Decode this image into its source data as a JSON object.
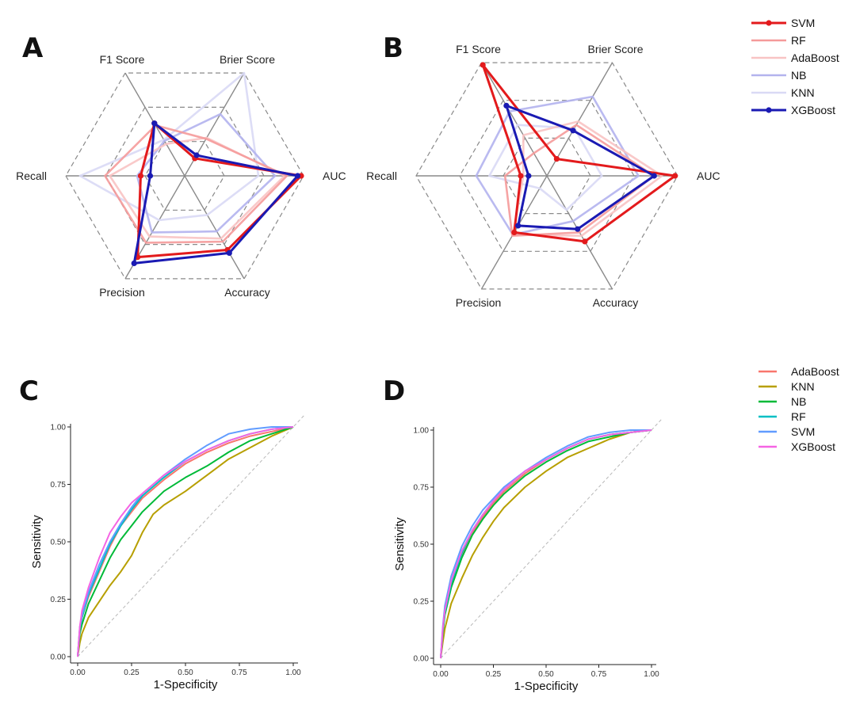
{
  "chart_data": [
    {
      "panel": "A",
      "type": "radar",
      "axes": [
        "AUC",
        "Brier Score",
        "F1 Score",
        "Recall",
        "Precision",
        "Accuracy"
      ],
      "range": [
        0,
        1
      ],
      "grid_levels": 3,
      "series": [
        {
          "name": "SVM",
          "values": [
            0.98,
            0.17,
            0.51,
            0.37,
            0.79,
            0.72
          ],
          "color": "#e31a1c",
          "markers": true
        },
        {
          "name": "RF",
          "values": [
            0.86,
            0.36,
            0.49,
            0.67,
            0.65,
            0.64
          ],
          "color": "#f59a9a",
          "markers": false
        },
        {
          "name": "AdaBoost",
          "values": [
            0.84,
            0.37,
            0.31,
            0.63,
            0.59,
            0.61
          ],
          "color": "#f8c3c3",
          "markers": false
        },
        {
          "name": "NB",
          "values": [
            0.76,
            0.6,
            0.34,
            0.4,
            0.55,
            0.54
          ],
          "color": "#b3b3ee",
          "markers": false
        },
        {
          "name": "KNN",
          "values": [
            0.62,
            1.0,
            0.35,
            0.88,
            0.43,
            0.38
          ],
          "color": "#d9d9f5",
          "markers": false
        },
        {
          "name": "XGBoost",
          "values": [
            0.95,
            0.2,
            0.51,
            0.29,
            0.85,
            0.75
          ],
          "color": "#1a1ab3",
          "markers": true
        }
      ]
    },
    {
      "panel": "B",
      "type": "radar",
      "axes": [
        "AUC",
        "Brier Score",
        "F1 Score",
        "Recall",
        "Precision",
        "Accuracy"
      ],
      "range": [
        0,
        1
      ],
      "grid_levels": 3,
      "series": [
        {
          "name": "SVM",
          "values": [
            0.98,
            0.15,
            0.98,
            0.2,
            0.5,
            0.58
          ],
          "color": "#e31a1c",
          "markers": true
        },
        {
          "name": "RF",
          "values": [
            0.82,
            0.45,
            0.2,
            0.32,
            0.53,
            0.5
          ],
          "color": "#f59a9a",
          "markers": false
        },
        {
          "name": "AdaBoost",
          "values": [
            0.88,
            0.48,
            0.36,
            0.18,
            0.52,
            0.53
          ],
          "color": "#f8c3c3",
          "markers": false
        },
        {
          "name": "NB",
          "values": [
            0.7,
            0.7,
            0.57,
            0.54,
            0.52,
            0.4
          ],
          "color": "#b3b3ee",
          "markers": false
        },
        {
          "name": "KNN",
          "values": [
            0.42,
            0.42,
            0.45,
            0.44,
            0.11,
            0.3
          ],
          "color": "#d9d9f5",
          "markers": false
        },
        {
          "name": "XGBoost",
          "values": [
            0.82,
            0.4,
            0.62,
            0.14,
            0.44,
            0.47
          ],
          "color": "#1a1ab3",
          "markers": true
        }
      ]
    },
    {
      "panel": "C",
      "type": "line",
      "xlabel": "1-Specificity",
      "ylabel": "Sensitivity",
      "xlim": [
        0,
        1
      ],
      "ylim": [
        0,
        1
      ],
      "ticks": [
        "0.00",
        "0.25",
        "0.50",
        "0.75",
        "1.00"
      ],
      "tick_values": [
        0,
        0.25,
        0.5,
        0.75,
        1
      ],
      "reference_line": true,
      "series": [
        {
          "name": "AdaBoost",
          "color": "#f8766d",
          "x": [
            0,
            0.01,
            0.02,
            0.05,
            0.1,
            0.15,
            0.2,
            0.25,
            0.3,
            0.4,
            0.5,
            0.6,
            0.7,
            0.8,
            0.9,
            1
          ],
          "y": [
            0,
            0.12,
            0.17,
            0.26,
            0.37,
            0.48,
            0.57,
            0.63,
            0.69,
            0.77,
            0.84,
            0.89,
            0.93,
            0.96,
            0.98,
            1
          ]
        },
        {
          "name": "KNN",
          "color": "#b79f00",
          "x": [
            0,
            0.01,
            0.02,
            0.05,
            0.1,
            0.15,
            0.2,
            0.25,
            0.3,
            0.35,
            0.4,
            0.5,
            0.6,
            0.7,
            0.8,
            0.9,
            1
          ],
          "y": [
            0,
            0.06,
            0.1,
            0.17,
            0.24,
            0.31,
            0.37,
            0.44,
            0.54,
            0.62,
            0.66,
            0.72,
            0.79,
            0.86,
            0.91,
            0.96,
            1
          ]
        },
        {
          "name": "NB",
          "color": "#00ba38",
          "x": [
            0,
            0.01,
            0.02,
            0.05,
            0.1,
            0.15,
            0.2,
            0.25,
            0.3,
            0.4,
            0.5,
            0.6,
            0.7,
            0.8,
            0.9,
            1
          ],
          "y": [
            0,
            0.1,
            0.14,
            0.23,
            0.33,
            0.43,
            0.51,
            0.57,
            0.63,
            0.72,
            0.78,
            0.83,
            0.89,
            0.94,
            0.97,
            1
          ]
        },
        {
          "name": "RF",
          "color": "#00bfc4",
          "x": [
            0,
            0.01,
            0.02,
            0.05,
            0.1,
            0.15,
            0.2,
            0.25,
            0.3,
            0.4,
            0.5,
            0.6,
            0.7,
            0.8,
            0.9,
            1
          ],
          "y": [
            0,
            0.12,
            0.17,
            0.27,
            0.38,
            0.49,
            0.57,
            0.64,
            0.7,
            0.78,
            0.85,
            0.9,
            0.94,
            0.97,
            0.99,
            1
          ]
        },
        {
          "name": "SVM",
          "color": "#619cff",
          "x": [
            0,
            0.01,
            0.02,
            0.05,
            0.1,
            0.15,
            0.2,
            0.25,
            0.3,
            0.4,
            0.5,
            0.6,
            0.7,
            0.8,
            0.9,
            1
          ],
          "y": [
            0,
            0.13,
            0.18,
            0.28,
            0.4,
            0.5,
            0.58,
            0.65,
            0.71,
            0.79,
            0.86,
            0.92,
            0.97,
            0.99,
            1,
            1
          ]
        },
        {
          "name": "XGBoost",
          "color": "#f564e3",
          "x": [
            0,
            0.01,
            0.02,
            0.05,
            0.1,
            0.15,
            0.2,
            0.25,
            0.3,
            0.4,
            0.5,
            0.6,
            0.7,
            0.8,
            0.9,
            1
          ],
          "y": [
            0,
            0.13,
            0.2,
            0.3,
            0.43,
            0.54,
            0.61,
            0.67,
            0.71,
            0.79,
            0.85,
            0.9,
            0.94,
            0.97,
            0.99,
            1
          ]
        }
      ]
    },
    {
      "panel": "D",
      "type": "line",
      "xlabel": "1-Specificity",
      "ylabel": "Sensitivity",
      "xlim": [
        0,
        1
      ],
      "ylim": [
        0,
        1
      ],
      "ticks": [
        "0.00",
        "0.25",
        "0.50",
        "0.75",
        "1.00"
      ],
      "tick_values": [
        0,
        0.25,
        0.5,
        0.75,
        1
      ],
      "reference_line": true,
      "series": [
        {
          "name": "AdaBoost",
          "color": "#f8766d",
          "x": [
            0,
            0.01,
            0.02,
            0.05,
            0.1,
            0.15,
            0.2,
            0.25,
            0.3,
            0.4,
            0.5,
            0.6,
            0.7,
            0.8,
            0.9,
            1
          ],
          "y": [
            0,
            0.12,
            0.2,
            0.32,
            0.45,
            0.55,
            0.62,
            0.68,
            0.73,
            0.81,
            0.87,
            0.92,
            0.96,
            0.98,
            0.99,
            1
          ]
        },
        {
          "name": "KNN",
          "color": "#b79f00",
          "x": [
            0,
            0.01,
            0.02,
            0.05,
            0.1,
            0.15,
            0.2,
            0.25,
            0.3,
            0.4,
            0.5,
            0.6,
            0.7,
            0.8,
            0.9,
            1
          ],
          "y": [
            0,
            0.07,
            0.13,
            0.24,
            0.35,
            0.45,
            0.53,
            0.6,
            0.66,
            0.75,
            0.82,
            0.88,
            0.92,
            0.96,
            0.99,
            1
          ]
        },
        {
          "name": "NB",
          "color": "#00ba38",
          "x": [
            0,
            0.01,
            0.02,
            0.05,
            0.1,
            0.15,
            0.2,
            0.25,
            0.3,
            0.4,
            0.5,
            0.6,
            0.7,
            0.8,
            0.9,
            1
          ],
          "y": [
            0,
            0.11,
            0.19,
            0.31,
            0.44,
            0.54,
            0.61,
            0.67,
            0.72,
            0.8,
            0.86,
            0.91,
            0.95,
            0.97,
            0.99,
            1
          ]
        },
        {
          "name": "RF",
          "color": "#00bfc4",
          "x": [
            0,
            0.01,
            0.02,
            0.05,
            0.1,
            0.15,
            0.2,
            0.25,
            0.3,
            0.4,
            0.5,
            0.6,
            0.7,
            0.8,
            0.9,
            1
          ],
          "y": [
            0,
            0.12,
            0.2,
            0.33,
            0.46,
            0.56,
            0.63,
            0.69,
            0.74,
            0.82,
            0.87,
            0.92,
            0.96,
            0.98,
            0.99,
            1
          ]
        },
        {
          "name": "SVM",
          "color": "#619cff",
          "x": [
            0,
            0.01,
            0.02,
            0.05,
            0.1,
            0.15,
            0.2,
            0.25,
            0.3,
            0.4,
            0.5,
            0.6,
            0.7,
            0.8,
            0.9,
            1
          ],
          "y": [
            0,
            0.14,
            0.23,
            0.36,
            0.49,
            0.58,
            0.65,
            0.7,
            0.75,
            0.82,
            0.88,
            0.93,
            0.97,
            0.99,
            1,
            1
          ]
        },
        {
          "name": "XGBoost",
          "color": "#f564e3",
          "x": [
            0,
            0.01,
            0.02,
            0.05,
            0.1,
            0.15,
            0.2,
            0.25,
            0.3,
            0.4,
            0.5,
            0.6,
            0.7,
            0.8,
            0.9,
            1
          ],
          "y": [
            0,
            0.13,
            0.21,
            0.34,
            0.47,
            0.56,
            0.63,
            0.69,
            0.74,
            0.82,
            0.87,
            0.92,
            0.96,
            0.98,
            0.99,
            1
          ]
        }
      ]
    }
  ],
  "legends": {
    "radar": [
      "SVM",
      "RF",
      "AdaBoost",
      "NB",
      "KNN",
      "XGBoost"
    ],
    "roc": [
      "AdaBoost",
      "KNN",
      "NB",
      "RF",
      "SVM",
      "XGBoost"
    ]
  }
}
